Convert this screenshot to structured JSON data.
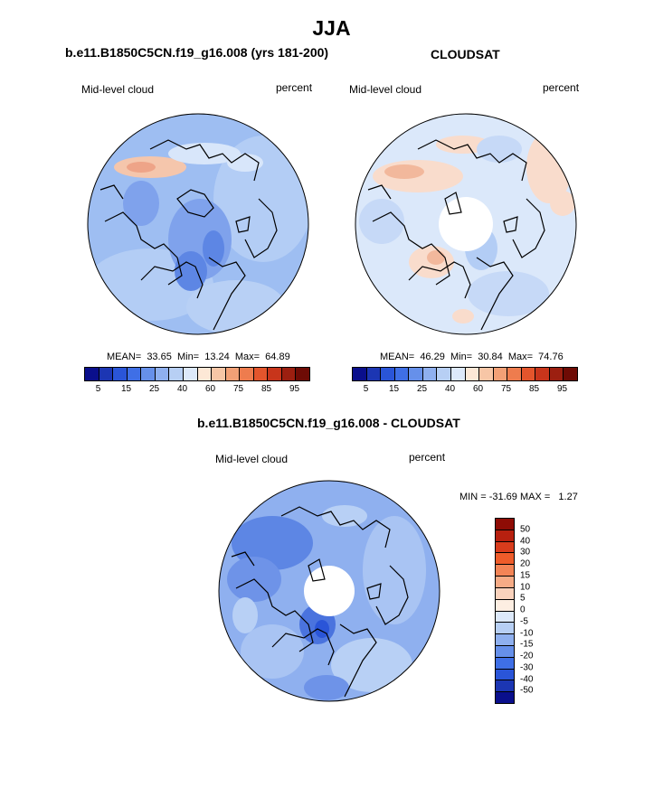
{
  "title": "JJA",
  "panels": [
    {
      "title": "b.e11.B1850C5CN.f19_g16.008 (yrs 181-200)",
      "left_label": "Mid-level cloud",
      "right_label": "percent",
      "stats": "MEAN=  33.65  Min=  13.24  Max=  64.89",
      "has_hole": false
    },
    {
      "title": "CLOUDSAT",
      "left_label": "Mid-level cloud",
      "right_label": "percent",
      "stats": "MEAN=  46.29  Min=  30.84  Max=  74.76",
      "has_hole": true
    },
    {
      "title": "b.e11.B1850C5CN.f19_g16.008 - CLOUDSAT",
      "left_label": "Mid-level cloud",
      "right_label": "percent",
      "stats": "MIN = -31.69 MAX =   1.27",
      "has_hole": true
    }
  ],
  "abs_colorbar": {
    "colors": [
      "#0a0f8c",
      "#1c36b3",
      "#2a55d8",
      "#3f6fe6",
      "#6690ea",
      "#8fb0ef",
      "#b7cff4",
      "#dde9fa",
      "#fde8d6",
      "#f7c6a6",
      "#f2a076",
      "#ee7c4e",
      "#e4552c",
      "#c8351b",
      "#9c1f10",
      "#6e0b05"
    ],
    "ticks": [
      "5",
      "15",
      "25",
      "40",
      "60",
      "75",
      "85",
      "95"
    ]
  },
  "diff_colorbar": {
    "colors": [
      "#8e0c05",
      "#b7200f",
      "#d83c1c",
      "#ee5c2a",
      "#f38456",
      "#f6ab86",
      "#fad2bc",
      "#fdeee2",
      "#dde9fa",
      "#b7cff4",
      "#8fb0ef",
      "#6690ea",
      "#3f6fe6",
      "#2a55d8",
      "#1c36b3",
      "#0a0f8c"
    ],
    "ticks": [
      "50",
      "40",
      "30",
      "20",
      "15",
      "10",
      "5",
      "0",
      "-5",
      "-10",
      "-15",
      "-20",
      "-30",
      "-40",
      "-50"
    ]
  }
}
